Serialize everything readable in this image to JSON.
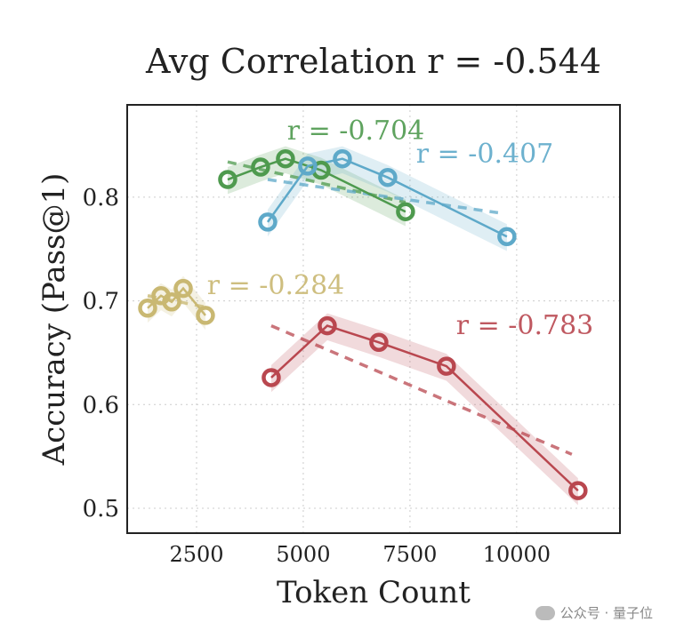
{
  "chart_data": {
    "type": "line",
    "title": "Avg Correlation r = -0.544",
    "xlabel": "Token Count",
    "ylabel": "Accuracy (Pass@1)",
    "xlim": [
      875,
      12420
    ],
    "ylim": [
      0.476,
      0.889
    ],
    "xticks": [
      2500,
      5000,
      7500,
      10000
    ],
    "yticks": [
      0.5,
      0.6,
      0.7,
      0.8
    ],
    "ytick_labels": [
      "0.5",
      "0.6",
      "0.7",
      "0.8"
    ],
    "grid": true,
    "series": [
      {
        "color": "#4e9a4e",
        "annotation": "r = -0.704",
        "x": [
          3229,
          4000,
          4583,
          5417,
          7396
        ],
        "y": [
          0.817,
          0.829,
          0.837,
          0.826,
          0.786
        ],
        "trend": [
          [
            3229,
            0.834
          ],
          [
            7396,
            0.795
          ]
        ]
      },
      {
        "color": "#5ea9c9",
        "annotation": "r = -0.407",
        "x": [
          4167,
          5104,
          5917,
          6979,
          9771
        ],
        "y": [
          0.776,
          0.83,
          0.837,
          0.819,
          0.762
        ],
        "trend": [
          [
            4167,
            0.817
          ],
          [
            9563,
            0.785
          ]
        ]
      },
      {
        "color": "#c9b872",
        "annotation": "r = -0.284",
        "x": [
          1354,
          1667,
          1917,
          2188,
          2708
        ],
        "y": [
          0.693,
          0.705,
          0.699,
          0.712,
          0.686
        ],
        "trend": [
          [
            1354,
            0.705
          ],
          [
            2708,
            0.694
          ]
        ]
      },
      {
        "color": "#b9474f",
        "annotation": "r = -0.783",
        "x": [
          4250,
          5563,
          6771,
          8354,
          11437
        ],
        "y": [
          0.626,
          0.676,
          0.66,
          0.637,
          0.517
        ],
        "trend": [
          [
            4250,
            0.676
          ],
          [
            11292,
            0.552
          ]
        ]
      }
    ]
  },
  "watermark": "公众号 · 量子位"
}
